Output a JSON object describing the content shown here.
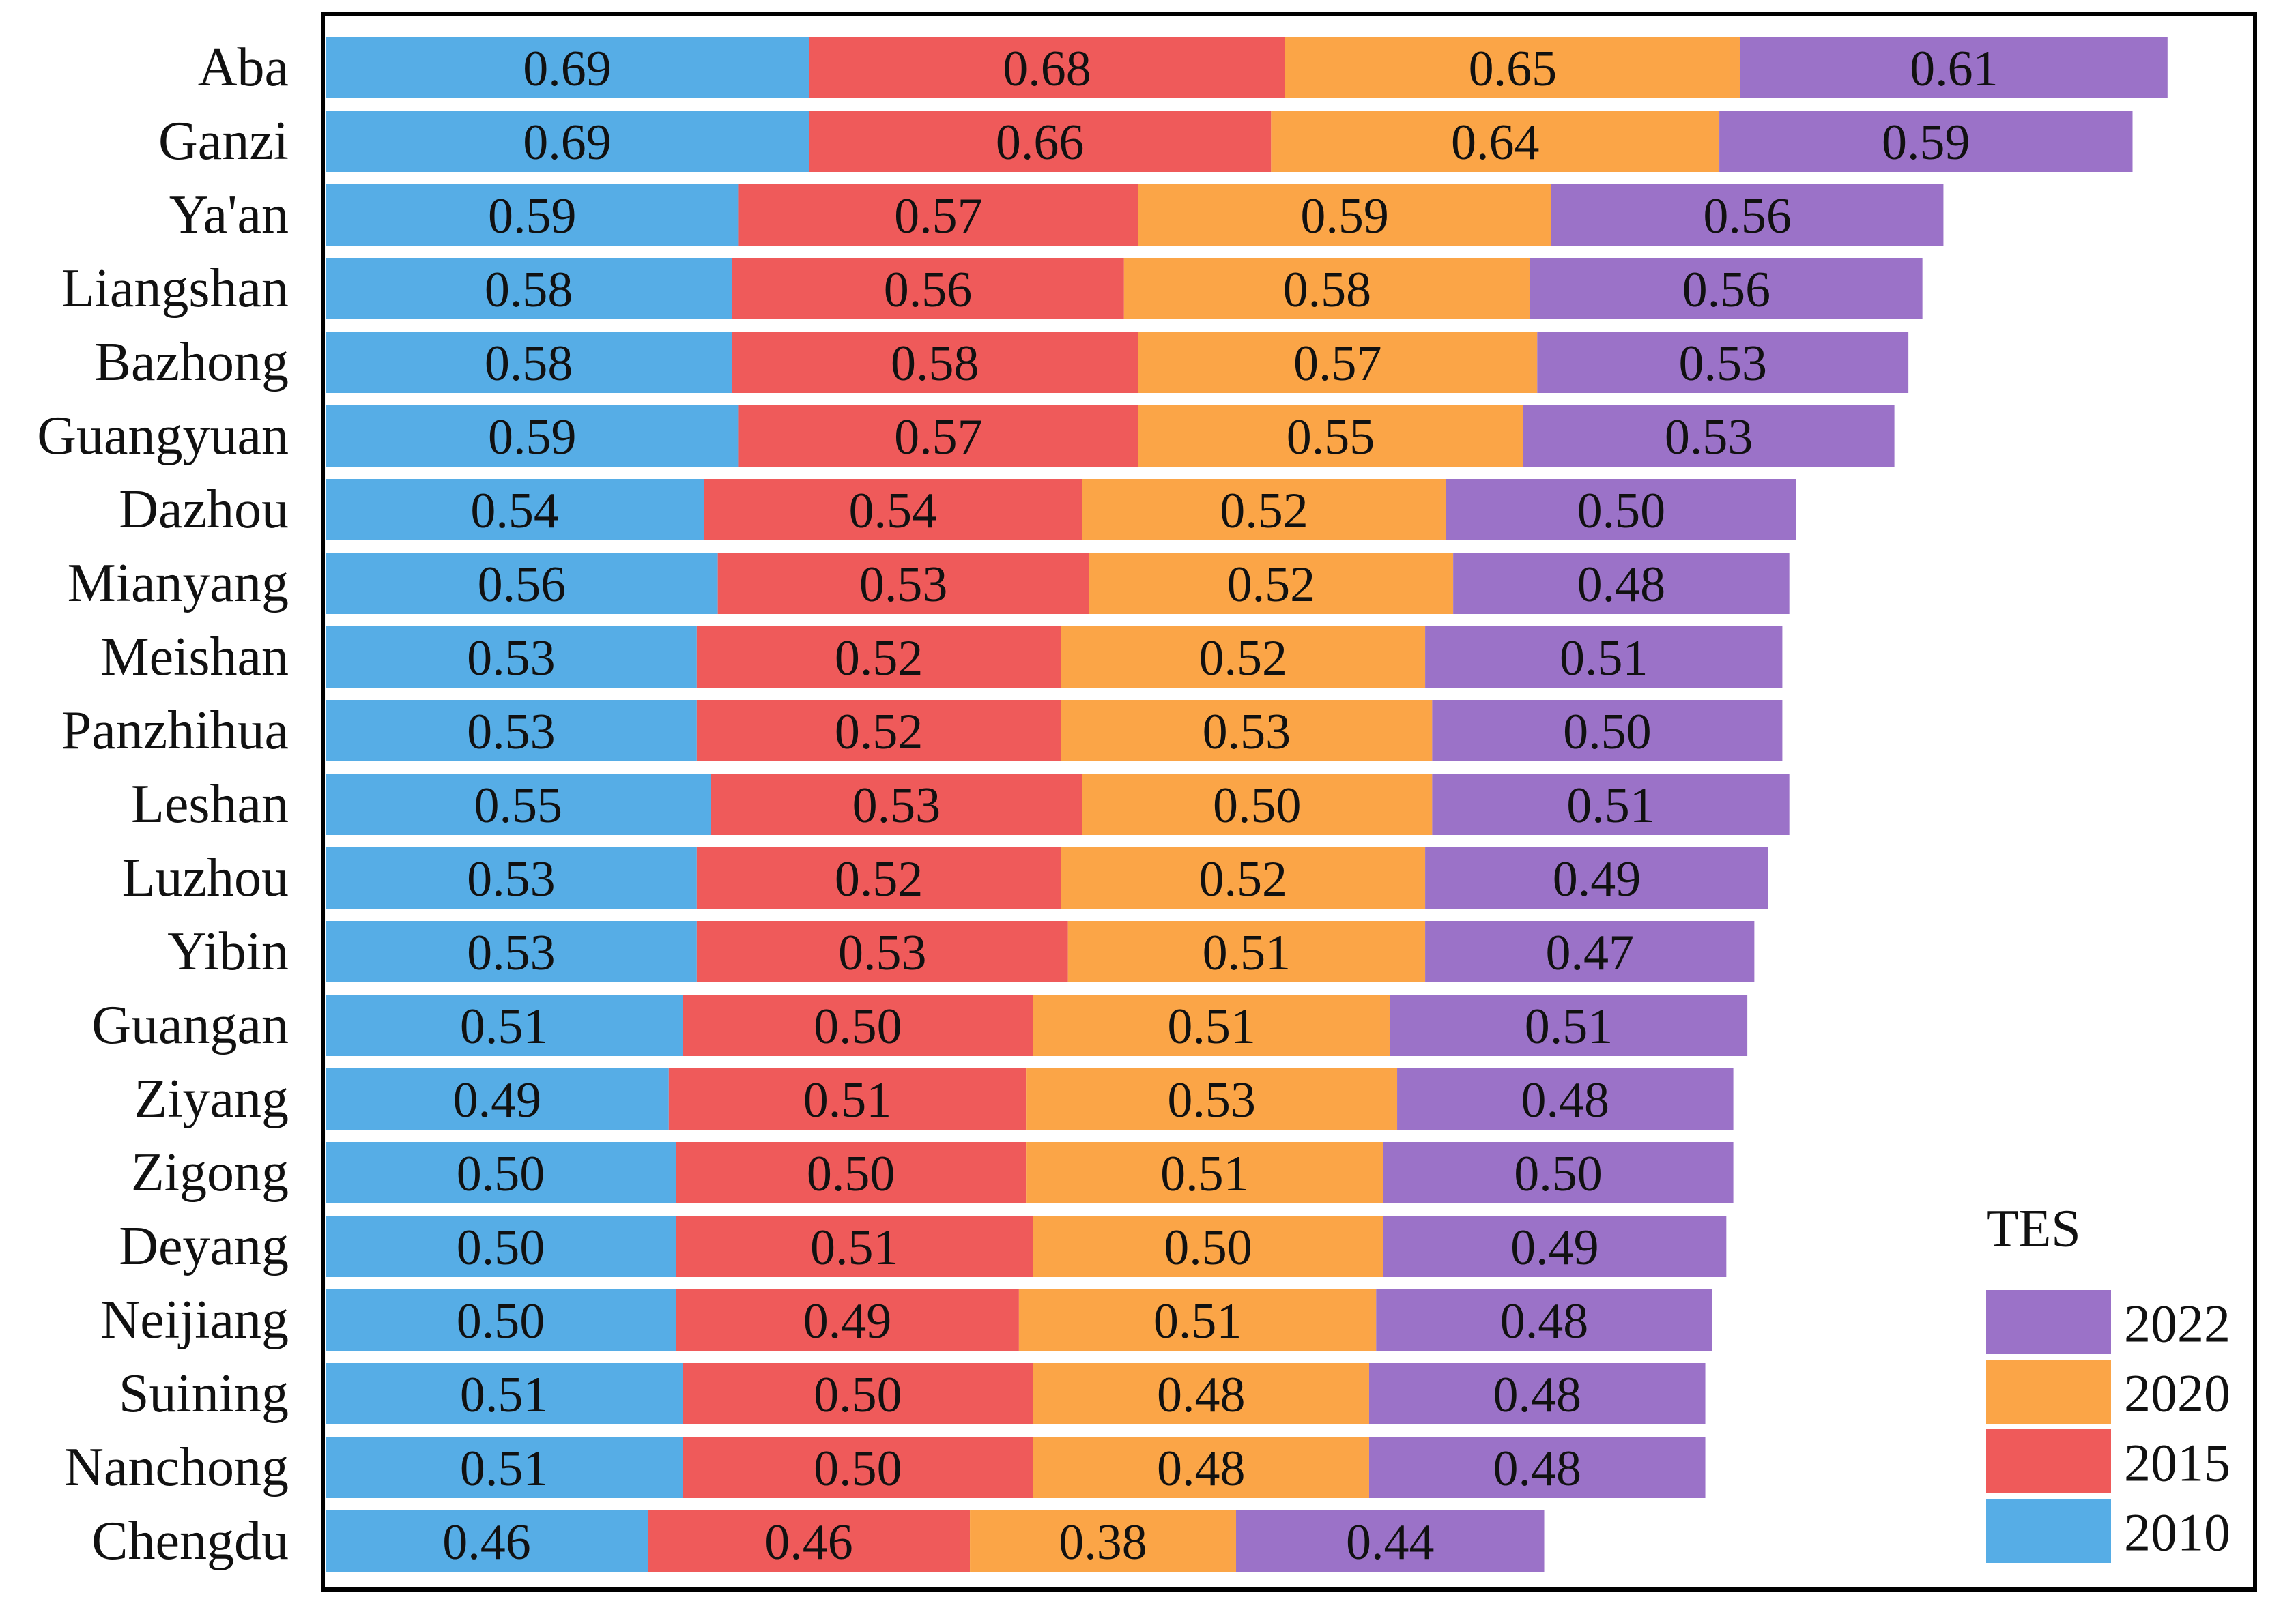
{
  "chart_data": {
    "type": "stacked-bar-horizontal",
    "categories": [
      "Aba",
      "Ganzi",
      "Ya'an",
      "Liangshan",
      "Bazhong",
      "Guangyuan",
      "Dazhou",
      "Mianyang",
      "Meishan",
      "Panzhihua",
      "Leshan",
      "Luzhou",
      "Yibin",
      "Guangan",
      "Ziyang",
      "Zigong",
      "Deyang",
      "Neijiang",
      "Suining",
      "Nanchong",
      "Chengdu"
    ],
    "legend_title": "TES",
    "legend_position": "bottom-right",
    "series": [
      {
        "name": "2010",
        "color": "#56ade6",
        "values": [
          0.69,
          0.69,
          0.59,
          0.58,
          0.58,
          0.59,
          0.54,
          0.56,
          0.53,
          0.53,
          0.55,
          0.53,
          0.53,
          0.51,
          0.49,
          0.5,
          0.5,
          0.5,
          0.51,
          0.51,
          0.46
        ],
        "value_labels": [
          "0.69",
          "0.69",
          "0.59",
          "0.58",
          "0.58",
          "0.59",
          "0.54",
          "0.56",
          "0.53",
          "0.53",
          "0.55",
          "0.53",
          "0.53",
          "0.51",
          "0.49",
          "0.50",
          "0.50",
          "0.50",
          "0.51",
          "0.51",
          "0.46"
        ]
      },
      {
        "name": "2015",
        "color": "#ef5a5a",
        "values": [
          0.68,
          0.66,
          0.57,
          0.56,
          0.58,
          0.57,
          0.54,
          0.53,
          0.52,
          0.52,
          0.53,
          0.52,
          0.53,
          0.5,
          0.51,
          0.5,
          0.51,
          0.49,
          0.5,
          0.5,
          0.46
        ],
        "value_labels": [
          "0.68",
          "0.66",
          "0.57",
          "0.56",
          "0.58",
          "0.57",
          "0.54",
          "0.53",
          "0.52",
          "0.52",
          "0.53",
          "0.52",
          "0.53",
          "0.50",
          "0.51",
          "0.50",
          "0.51",
          "0.49",
          "0.50",
          "0.50",
          "0.46"
        ]
      },
      {
        "name": "2020",
        "color": "#fba547",
        "values": [
          0.65,
          0.64,
          0.59,
          0.58,
          0.57,
          0.55,
          0.52,
          0.52,
          0.52,
          0.53,
          0.5,
          0.52,
          0.51,
          0.51,
          0.53,
          0.51,
          0.5,
          0.51,
          0.48,
          0.48,
          0.38
        ],
        "value_labels": [
          "0.65",
          "0.64",
          "0.59",
          "0.58",
          "0.57",
          "0.55",
          "0.52",
          "0.52",
          "0.52",
          "0.53",
          "0.50",
          "0.52",
          "0.51",
          "0.51",
          "0.53",
          "0.51",
          "0.50",
          "0.51",
          "0.48",
          "0.48",
          "0.38"
        ]
      },
      {
        "name": "2022",
        "color": "#9b72c8",
        "values": [
          0.61,
          0.59,
          0.56,
          0.56,
          0.53,
          0.53,
          0.5,
          0.48,
          0.51,
          0.5,
          0.51,
          0.49,
          0.47,
          0.51,
          0.48,
          0.5,
          0.49,
          0.48,
          0.48,
          0.48,
          0.44
        ],
        "value_labels": [
          "0.61",
          "0.59",
          "0.56",
          "0.56",
          "0.53",
          "0.53",
          "0.50",
          "0.48",
          "0.51",
          "0.50",
          "0.51",
          "0.49",
          "0.47",
          "0.51",
          "0.48",
          "0.50",
          "0.49",
          "0.48",
          "0.48",
          "0.48",
          "0.44"
        ]
      }
    ]
  }
}
